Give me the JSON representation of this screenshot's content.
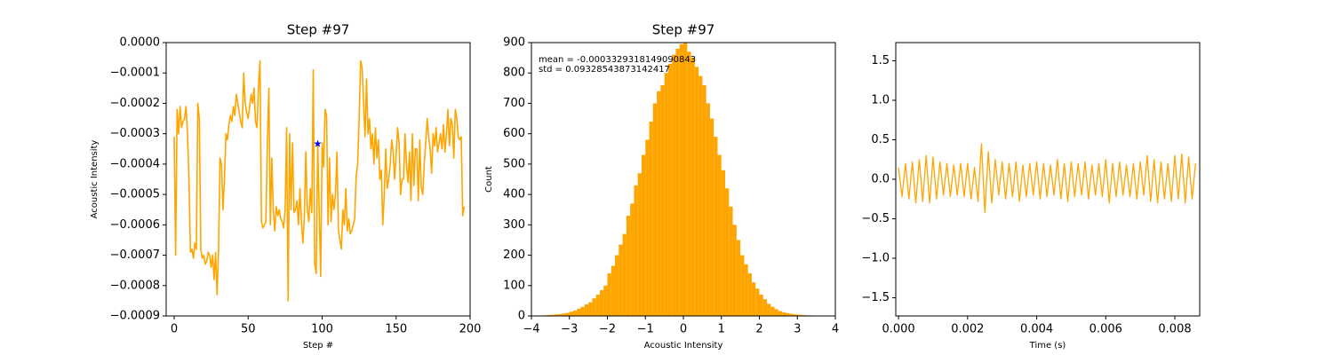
{
  "chart_data": [
    {
      "type": "line",
      "title": "Step #97",
      "xlabel": "Step #",
      "ylabel": "Acoustic Intensity",
      "xlim": [
        -5.4,
        200
      ],
      "ylim": [
        -0.0009,
        0
      ],
      "xticks": [
        0,
        50,
        100,
        150,
        200
      ],
      "yticks": [
        {
          "value": 0,
          "label": "0.0000"
        },
        {
          "value": -0.0001,
          "label": "−0.0001"
        },
        {
          "value": -0.0002,
          "label": "−0.0002"
        },
        {
          "value": -0.0003,
          "label": "−0.0003"
        },
        {
          "value": -0.0004,
          "label": "−0.0004"
        },
        {
          "value": -0.0005,
          "label": "−0.0005"
        },
        {
          "value": -0.0006,
          "label": "−0.0006"
        },
        {
          "value": -0.0007,
          "label": "−0.0007"
        },
        {
          "value": -0.0008,
          "label": "−0.0008"
        },
        {
          "value": -0.0009,
          "label": "−0.0009"
        }
      ],
      "color": "#ffa500",
      "x": [
        0,
        1,
        2,
        3,
        4,
        5,
        6,
        7,
        8,
        9,
        10,
        11,
        12,
        13,
        14,
        15,
        16,
        17,
        18,
        19,
        20,
        21,
        22,
        23,
        24,
        25,
        26,
        27,
        28,
        29,
        30,
        31,
        32,
        33,
        34,
        35,
        36,
        37,
        38,
        39,
        40,
        41,
        42,
        43,
        44,
        45,
        46,
        47,
        48,
        49,
        50,
        51,
        52,
        53,
        54,
        55,
        56,
        57,
        58,
        59,
        60,
        61,
        62,
        63,
        64,
        65,
        66,
        67,
        68,
        69,
        70,
        71,
        72,
        73,
        74,
        75,
        76,
        77,
        78,
        79,
        80,
        81,
        82,
        83,
        84,
        85,
        86,
        87,
        88,
        89,
        90,
        91,
        92,
        93,
        94,
        95,
        96,
        97,
        98,
        99,
        100,
        101,
        102,
        103,
        104,
        105,
        106,
        107,
        108,
        109,
        110,
        111,
        112,
        113,
        114,
        115,
        116,
        117,
        118,
        119,
        120,
        121,
        122,
        123,
        124,
        125,
        126,
        127,
        128,
        129,
        130,
        131,
        132,
        133,
        134,
        135,
        136,
        137,
        138,
        139,
        140,
        141,
        142,
        143,
        144,
        145,
        146,
        147,
        148,
        149,
        150,
        151,
        152,
        153,
        154,
        155,
        156,
        157,
        158,
        159,
        160,
        161,
        162,
        163,
        164,
        165,
        166,
        167,
        168,
        169,
        170,
        171,
        172,
        173,
        174,
        175,
        176,
        177,
        178,
        179,
        180,
        181,
        182,
        183,
        184,
        185,
        186,
        187,
        188,
        189,
        190,
        191,
        192,
        193,
        194,
        195,
        196
      ],
      "values": [
        -0.00031,
        -0.0007,
        -0.00022,
        -0.0003,
        -0.00021,
        -0.00028,
        -0.00026,
        -0.00025,
        -0.00021,
        -0.0003,
        -0.00045,
        -0.00069,
        -0.00068,
        -0.00071,
        -0.00066,
        -0.00068,
        -0.0002,
        -0.00025,
        -0.00068,
        -0.00071,
        -0.0007,
        -0.00073,
        -0.00072,
        -0.00069,
        -0.0007,
        -0.00074,
        -0.0007,
        -0.00078,
        -0.00069,
        -0.00083,
        -0.00068,
        -0.00038,
        -0.0004,
        -0.00055,
        -0.00045,
        -0.0003,
        -0.00032,
        -0.00027,
        -0.00024,
        -0.00026,
        -0.00021,
        -0.00024,
        -0.00017,
        -0.0002,
        -0.00023,
        -0.00026,
        -0.00028,
        -0.0001,
        -0.0002,
        -0.00023,
        -0.00025,
        -0.00021,
        -0.00017,
        -0.0002,
        -0.00015,
        -0.00026,
        -0.00028,
        -0.00014,
        -6e-05,
        -0.00059,
        -0.00061,
        -0.0006,
        -0.00059,
        -0.00032,
        -0.00015,
        -0.0006,
        -0.00038,
        -0.00055,
        -0.00062,
        -0.00054,
        -0.00057,
        -0.00055,
        -0.00058,
        -0.00059,
        -0.00061,
        -0.00055,
        -0.00028,
        -0.00085,
        -0.0003,
        -0.00055,
        -0.00033,
        -0.00056,
        -0.00055,
        -0.00052,
        -0.0006,
        -0.00048,
        -0.00059,
        -0.00066,
        -0.00057,
        -0.00036,
        -0.00055,
        -0.00059,
        -0.00048,
        -0.00056,
        -9e-05,
        -0.00073,
        -0.00076,
        -0.00033,
        -0.00055,
        -0.00077,
        -0.00033,
        -0.00041,
        -0.00022,
        -0.00024,
        -0.0006,
        -0.00038,
        -0.00059,
        -0.0005,
        -0.00055,
        -0.0005,
        -0.00036,
        -0.00062,
        -0.00065,
        -0.00068,
        -0.00055,
        -0.0006,
        -0.00048,
        -0.00062,
        -0.00058,
        -0.00063,
        -0.00062,
        -0.0006,
        -0.00058,
        -0.00044,
        -0.0004,
        -0.00025,
        -6e-05,
        -8e-05,
        -0.0002,
        -0.00031,
        -0.00012,
        -0.0003,
        -0.00025,
        -0.00035,
        -0.0003,
        -0.0004,
        -0.00028,
        -0.00038,
        -0.00032,
        -0.00045,
        -0.00042,
        -0.0006,
        -0.0005,
        -0.00035,
        -0.00048,
        -0.00045,
        -0.0004,
        -0.00032,
        -0.00036,
        -0.00045,
        -0.00037,
        -0.00028,
        -0.00033,
        -0.0005,
        -0.00045,
        -0.00045,
        -0.0003,
        -0.0004,
        -0.00046,
        -0.00036,
        -0.00052,
        -0.0003,
        -0.00047,
        -0.00035,
        -0.00035,
        -0.00052,
        -0.00032,
        -0.00048,
        -0.0005,
        -0.0004,
        -0.00033,
        -0.00025,
        -0.00031,
        -0.00035,
        -0.00043,
        -0.0003,
        -0.00034,
        -0.00028,
        -0.00036,
        -0.00033,
        -0.0003,
        -0.00035,
        -0.00027,
        -0.00036,
        -0.0003,
        -0.00022,
        -0.00034,
        -0.00025,
        -0.00027,
        -0.00038,
        -0.00022,
        -0.00025,
        -0.00031,
        -0.00032,
        -0.00031,
        -0.00057,
        -0.00054
      ],
      "marker": {
        "x": 97,
        "y": -0.0003332931814909,
        "color": "#0000ff"
      }
    },
    {
      "type": "histogram",
      "title": "Step #97",
      "xlabel": "Acoustic Intensity",
      "ylabel": "Count",
      "annotations": [
        "mean = -0.0003329318149090843",
        "std = 0.09328543873142417"
      ],
      "xlim": [
        -4,
        4
      ],
      "ylim": [
        0,
        900
      ],
      "xticks": [
        {
          "value": -4,
          "label": "−4"
        },
        {
          "value": -3,
          "label": "−3"
        },
        {
          "value": -2,
          "label": "−2"
        },
        {
          "value": -1,
          "label": "−1"
        },
        0,
        1,
        2,
        3,
        4
      ],
      "yticks": [
        0,
        100,
        200,
        300,
        400,
        500,
        600,
        700,
        800,
        900
      ],
      "color": "#ffa500",
      "bins": [
        -4,
        -3.9,
        -3.8,
        -3.7,
        -3.6,
        -3.5,
        -3.4,
        -3.3,
        -3.2,
        -3.1,
        -3,
        -2.9,
        -2.8,
        -2.7,
        -2.6,
        -2.5,
        -2.4,
        -2.3,
        -2.2,
        -2.1,
        -2,
        -1.9,
        -1.8,
        -1.7,
        -1.6,
        -1.5,
        -1.4,
        -1.3,
        -1.2,
        -1.1,
        -1,
        -0.9,
        -0.8,
        -0.7,
        -0.6,
        -0.5,
        -0.4,
        -0.3,
        -0.2,
        -0.1,
        0,
        0.1,
        0.2,
        0.3,
        0.4,
        0.5,
        0.6,
        0.7,
        0.8,
        0.9,
        1,
        1.1,
        1.2,
        1.3,
        1.4,
        1.5,
        1.6,
        1.7,
        1.8,
        1.9,
        2,
        2.1,
        2.2,
        2.3,
        2.4,
        2.5,
        2.6,
        2.7,
        2.8,
        2.9,
        3,
        3.1,
        3.2,
        3.3,
        3.4,
        3.5,
        3.6,
        3.7,
        3.8,
        3.9,
        4
      ],
      "counts": [
        0,
        1,
        1,
        2,
        3,
        4,
        5,
        6,
        8,
        10,
        14,
        18,
        24,
        30,
        38,
        45,
        58,
        70,
        85,
        100,
        140,
        165,
        200,
        235,
        270,
        330,
        370,
        430,
        470,
        530,
        580,
        640,
        700,
        740,
        760,
        800,
        830,
        860,
        880,
        895,
        900,
        870,
        850,
        820,
        790,
        760,
        700,
        650,
        590,
        530,
        480,
        420,
        360,
        300,
        250,
        200,
        170,
        140,
        110,
        90,
        70,
        55,
        40,
        30,
        22,
        16,
        12,
        9,
        7,
        5,
        4,
        3,
        2,
        2,
        1,
        1,
        1,
        0,
        0,
        0
      ]
    },
    {
      "type": "line",
      "xlabel": "Time (s)",
      "xlim": [
        -8e-05,
        0.00872
      ],
      "ylim": [
        -1.73,
        1.73
      ],
      "xticks": [
        {
          "value": 0,
          "label": "0.000"
        },
        {
          "value": 0.002,
          "label": "0.002"
        },
        {
          "value": 0.004,
          "label": "0.004"
        },
        {
          "value": 0.006,
          "label": "0.006"
        },
        {
          "value": 0.008,
          "label": "0.008"
        }
      ],
      "yticks": [
        {
          "value": -1.5,
          "label": "−1.5"
        },
        {
          "value": -1,
          "label": "−1.0"
        },
        {
          "value": -0.5,
          "label": "−0.5"
        },
        {
          "value": 0,
          "label": "0.0"
        },
        {
          "value": 0.5,
          "label": "0.5"
        },
        {
          "value": 1,
          "label": "1.0"
        },
        {
          "value": 1.5,
          "label": "1.5"
        }
      ],
      "color": "#ffa500",
      "x": [
        0,
        0.0001,
        0.0002,
        0.0003,
        0.0004,
        0.0005,
        0.0006,
        0.0007,
        0.0008,
        0.0009,
        0.001,
        0.0011,
        0.0012,
        0.0013,
        0.0014,
        0.0015,
        0.0016,
        0.0017,
        0.0018,
        0.0019,
        0.002,
        0.0021,
        0.0022,
        0.0023,
        0.0024,
        0.0025,
        0.0026,
        0.0027,
        0.0028,
        0.0029,
        0.003,
        0.0031,
        0.0032,
        0.0033,
        0.0034,
        0.0035,
        0.0036,
        0.0037,
        0.0038,
        0.0039,
        0.004,
        0.0041,
        0.0042,
        0.0043,
        0.0044,
        0.0045,
        0.0046,
        0.0047,
        0.0048,
        0.0049,
        0.005,
        0.0051,
        0.0052,
        0.0053,
        0.0054,
        0.0055,
        0.0056,
        0.0057,
        0.0058,
        0.0059,
        0.006,
        0.0061,
        0.0062,
        0.0063,
        0.0064,
        0.0065,
        0.0066,
        0.0067,
        0.0068,
        0.0069,
        0.007,
        0.0071,
        0.0072,
        0.0073,
        0.0074,
        0.0075,
        0.0076,
        0.0077,
        0.0078,
        0.0079,
        0.008,
        0.0081,
        0.0082,
        0.0083,
        0.0084,
        0.0085,
        0.0086
      ],
      "values": [
        0.15,
        -0.22,
        0.2,
        -0.25,
        0.22,
        -0.3,
        0.25,
        -0.28,
        0.3,
        -0.3,
        0.28,
        -0.25,
        0.22,
        -0.2,
        0.2,
        -0.22,
        0.18,
        -0.2,
        0.2,
        -0.22,
        0.2,
        -0.25,
        0.15,
        -0.28,
        0.45,
        -0.42,
        0.35,
        -0.3,
        0.25,
        -0.2,
        0.22,
        -0.25,
        0.2,
        -0.22,
        0.22,
        -0.28,
        0.18,
        -0.22,
        0.2,
        -0.2,
        0.22,
        -0.25,
        0.2,
        -0.22,
        0.18,
        -0.2,
        0.25,
        -0.25,
        0.2,
        -0.28,
        0.22,
        -0.22,
        0.2,
        -0.2,
        0.22,
        -0.25,
        0.18,
        -0.2,
        0.2,
        -0.22,
        0.25,
        -0.3,
        0.2,
        -0.22,
        0.22,
        -0.2,
        0.18,
        -0.22,
        0.2,
        -0.25,
        0.22,
        -0.2,
        0.3,
        -0.28,
        0.25,
        -0.3,
        0.22,
        -0.25,
        0.2,
        -0.28,
        0.3,
        -0.25,
        0.32,
        -0.3,
        0.28,
        -0.25,
        0.2
      ]
    }
  ]
}
